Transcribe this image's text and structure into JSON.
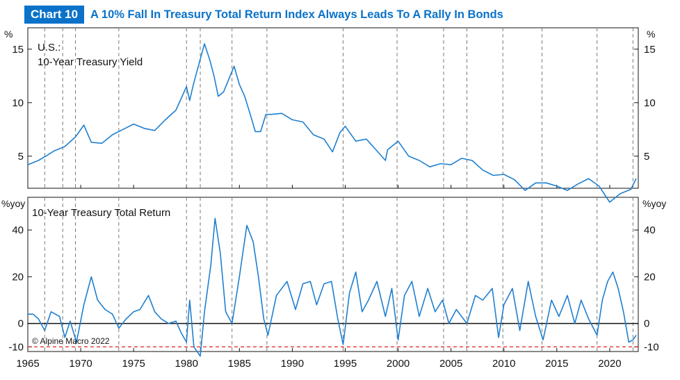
{
  "header": {
    "badge": "Chart 10",
    "title": "A 10% Fall In Treasury Total Return Index Always Leads To A Rally In Bonds"
  },
  "colors": {
    "accent": "#0a72c9",
    "series_line": "#1f7fd0",
    "threshold_line": "#e0201b",
    "zero_line": "#111111",
    "event_line": "#7a7a7a"
  },
  "copyright": "© Alpine Macro 2022",
  "chart_data": [
    {
      "type": "line",
      "title": "",
      "panel_label": [
        "U.S.:",
        "10-Year Treasury Yield"
      ],
      "unit_left": "%",
      "unit_right": "%",
      "ylim": [
        2,
        17
      ],
      "yticks": [
        5,
        10,
        15
      ],
      "xlim": [
        1965,
        2022.7
      ],
      "grid": false,
      "series": [
        {
          "name": "10-Year Treasury Yield",
          "x": [
            1965,
            1966,
            1966.7,
            1967.5,
            1968.5,
            1969.5,
            1970.3,
            1971,
            1972,
            1973,
            1974,
            1975,
            1976,
            1977,
            1978,
            1979,
            1980,
            1980.3,
            1980.6,
            1981,
            1981.7,
            1982.2,
            1982.6,
            1983,
            1983.5,
            1984,
            1984.5,
            1985,
            1985.5,
            1986,
            1986.5,
            1987,
            1987.5,
            1988,
            1989,
            1990,
            1991,
            1992,
            1993,
            1993.8,
            1994.5,
            1995,
            1996,
            1997,
            1998,
            1998.8,
            1999,
            2000,
            2001,
            2002,
            2003,
            2004,
            2005,
            2006,
            2007,
            2008,
            2009,
            2010,
            2011,
            2012,
            2013,
            2014,
            2015,
            2016,
            2017,
            2018,
            2019,
            2020,
            2021,
            2022,
            2022.5
          ],
          "values": [
            4.2,
            4.6,
            5.0,
            5.5,
            5.9,
            6.8,
            7.9,
            6.3,
            6.2,
            7.0,
            7.5,
            8.0,
            7.6,
            7.4,
            8.4,
            9.3,
            11.5,
            10.2,
            11.5,
            13.0,
            15.5,
            14.0,
            12.5,
            10.6,
            11.0,
            12.2,
            13.4,
            11.7,
            10.6,
            9.0,
            7.3,
            7.3,
            8.9,
            8.9,
            9.0,
            8.4,
            8.2,
            7.0,
            6.6,
            5.4,
            7.2,
            7.8,
            6.4,
            6.6,
            5.5,
            4.6,
            5.6,
            6.4,
            5.0,
            4.6,
            4.0,
            4.3,
            4.2,
            4.8,
            4.6,
            3.7,
            3.2,
            3.3,
            2.8,
            1.8,
            2.5,
            2.5,
            2.2,
            1.8,
            2.4,
            2.9,
            2.2,
            0.7,
            1.5,
            1.9,
            2.9
          ]
        }
      ]
    },
    {
      "type": "line",
      "title": "",
      "panel_label": [
        "10-Year Treasury Total Return"
      ],
      "unit_left": "%yoy",
      "unit_right": "%yoy",
      "ylim": [
        -12,
        54
      ],
      "yticks": [
        -10,
        0,
        20,
        40
      ],
      "xlim": [
        1965,
        2022.7
      ],
      "xticks": [
        1965,
        1970,
        1975,
        1980,
        1985,
        1990,
        1995,
        2000,
        2005,
        2010,
        2015,
        2020
      ],
      "xtick_labels": [
        "1965",
        "1970",
        "1975",
        "1980",
        "1985",
        "1990",
        "1995",
        "2000",
        "2005",
        "2010",
        "2015",
        "2020"
      ],
      "grid": false,
      "reference_lines": [
        {
          "y": 0,
          "style": "solid"
        },
        {
          "y": -10,
          "style": "dashed"
        }
      ],
      "event_dates": [
        1966.6,
        1968.3,
        1969.5,
        1973.6,
        1980.0,
        1981.3,
        1984.3,
        1987.6,
        1994.8,
        1999.9,
        2004.3,
        2006.5,
        2009.9,
        2013.6,
        2018.8,
        2022.2
      ],
      "series": [
        {
          "name": "10-Year Treasury Total Return",
          "x": [
            1965,
            1965.5,
            1966,
            1966.6,
            1967.2,
            1968,
            1968.5,
            1969,
            1969.6,
            1970.3,
            1971,
            1971.6,
            1972.3,
            1973,
            1973.6,
            1974.3,
            1975,
            1975.6,
            1976.4,
            1977,
            1977.6,
            1978.3,
            1979,
            1979.5,
            1980,
            1980.3,
            1980.7,
            1981.3,
            1981.7,
            1982.3,
            1982.7,
            1983.2,
            1983.7,
            1984.3,
            1985,
            1985.7,
            1986.3,
            1986.8,
            1987.3,
            1987.7,
            1988.5,
            1989,
            1989.5,
            1990.3,
            1991,
            1991.7,
            1992.3,
            1993,
            1993.7,
            1994.3,
            1994.8,
            1995.4,
            1996,
            1996.6,
            1997.2,
            1998,
            1998.8,
            1999.4,
            2000,
            2000.6,
            2001.3,
            2002,
            2002.8,
            2003.5,
            2004.2,
            2004.8,
            2005.5,
            2006.5,
            2007.3,
            2008,
            2008.9,
            2009.5,
            2010,
            2010.8,
            2011.5,
            2012.3,
            2013,
            2013.7,
            2014.5,
            2015.2,
            2016,
            2016.7,
            2017.3,
            2018,
            2018.8,
            2019.3,
            2019.8,
            2020.3,
            2020.8,
            2021.3,
            2021.8,
            2022.2,
            2022.5
          ],
          "values": [
            4,
            4,
            2,
            -3,
            5,
            3,
            -6,
            1,
            -8,
            8,
            20,
            10,
            6,
            4,
            -2,
            2,
            5,
            6,
            12,
            5,
            2,
            0,
            1,
            -4,
            -8,
            10,
            -10,
            -14,
            5,
            25,
            45,
            30,
            5,
            0,
            20,
            42,
            35,
            20,
            2,
            -5,
            12,
            15,
            18,
            6,
            17,
            18,
            8,
            17,
            18,
            2,
            -9,
            13,
            22,
            5,
            10,
            18,
            3,
            15,
            -7,
            12,
            18,
            3,
            15,
            5,
            10,
            0,
            6,
            0,
            12,
            10,
            15,
            -6,
            8,
            15,
            -3,
            18,
            3,
            -7,
            10,
            3,
            12,
            0,
            10,
            2,
            -5,
            10,
            18,
            22,
            15,
            5,
            -8,
            -7,
            -5
          ]
        }
      ]
    }
  ]
}
